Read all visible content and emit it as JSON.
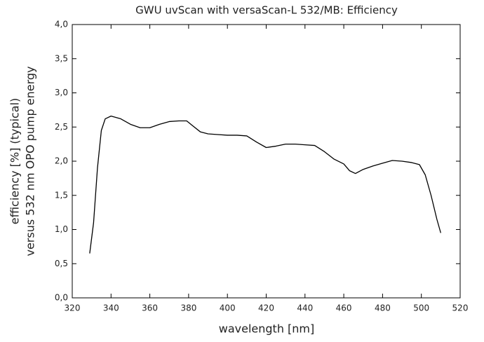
{
  "chart_data": {
    "type": "line",
    "title": "GWU uvScan with versaScan-L 532/MB: Efficiency",
    "xlabel": "wavelength [nm]",
    "ylabel": [
      "efficiency [%] (typical)",
      "versus 532 nm OPO pump energy"
    ],
    "x": [
      329,
      331,
      333,
      335,
      337,
      340,
      345,
      350,
      355,
      360,
      365,
      370,
      375,
      379,
      382,
      386,
      390,
      395,
      400,
      405,
      410,
      415,
      420,
      425,
      430,
      435,
      440,
      445,
      450,
      455,
      460,
      463,
      466,
      470,
      475,
      480,
      485,
      490,
      495,
      499,
      502,
      505,
      508,
      510
    ],
    "y": [
      0.65,
      1.1,
      1.9,
      2.45,
      2.62,
      2.66,
      2.62,
      2.54,
      2.49,
      2.49,
      2.54,
      2.58,
      2.59,
      2.59,
      2.52,
      2.43,
      2.4,
      2.39,
      2.38,
      2.38,
      2.37,
      2.28,
      2.2,
      2.22,
      2.25,
      2.25,
      2.24,
      2.23,
      2.14,
      2.03,
      1.96,
      1.86,
      1.82,
      1.88,
      1.93,
      1.97,
      2.01,
      2.0,
      1.98,
      1.95,
      1.8,
      1.5,
      1.15,
      0.95
    ],
    "color": "#000000",
    "xlim": [
      320,
      520
    ],
    "xticks": [
      320,
      340,
      360,
      380,
      400,
      420,
      440,
      460,
      480,
      500,
      520
    ],
    "ylim": [
      0,
      4
    ],
    "yticks": [
      {
        "value": 0,
        "label": "0,0"
      },
      {
        "value": 0.5,
        "label": "0,5"
      },
      {
        "value": 1,
        "label": "1,0"
      },
      {
        "value": 1.5,
        "label": "1,5"
      },
      {
        "value": 2,
        "label": "2,0"
      },
      {
        "value": 2.5,
        "label": "2,5"
      },
      {
        "value": 3,
        "label": "3,0"
      },
      {
        "value": 3.5,
        "label": "3,5"
      },
      {
        "value": 4,
        "label": "4,0"
      }
    ],
    "grid": false
  }
}
